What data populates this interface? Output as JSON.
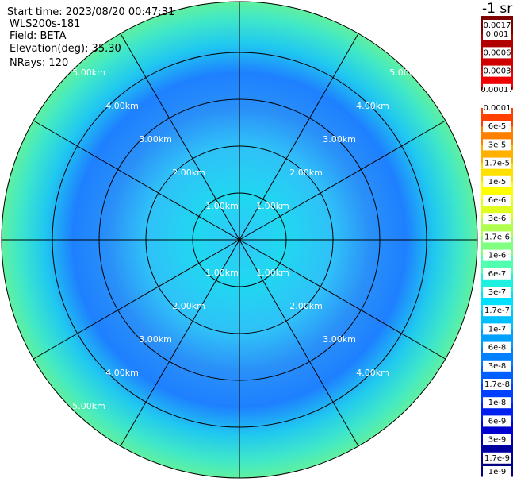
{
  "header": {
    "start_time": "Start time: 2023/08/20 00:47:31",
    "site": "WLS200s-181",
    "field": "Field: BETA",
    "elevation": "Elevation(deg): 35.30",
    "nrays": "NRays: 120"
  },
  "unit": "-1 sr",
  "range_labels": [
    "1.00km",
    "2.00km",
    "3.00km",
    "4.00km",
    "5.00km"
  ],
  "colorbar": {
    "labels": [
      "0.0017",
      "0.001",
      "0.0006",
      "0.0003",
      "0.00017",
      "0.0001",
      "6e-5",
      "3e-5",
      "1.7e-5",
      "1e-5",
      "6e-6",
      "3e-6",
      "1.7e-6",
      "1e-6",
      "6e-7",
      "3e-7",
      "1.7e-7",
      "1e-7",
      "6e-8",
      "3e-8",
      "1.7e-8",
      "1e-8",
      "6e-9",
      "3e-9",
      "1.7e-9",
      "1e-9"
    ],
    "colors": [
      "#800000",
      "#b00000",
      "#d00000",
      "#f00000",
      "#ffffff",
      "#ff4000",
      "#ff8000",
      "#ffb000",
      "#ffe000",
      "#ffff00",
      "#e0ff20",
      "#b0ff50",
      "#80ff80",
      "#50ffb0",
      "#20f0e0",
      "#00e0ff",
      "#00c0ff",
      "#00a0ff",
      "#0080ff",
      "#0060ff",
      "#0040ff",
      "#0020f0",
      "#0000d0",
      "#0000a0",
      "#000080"
    ]
  }
}
